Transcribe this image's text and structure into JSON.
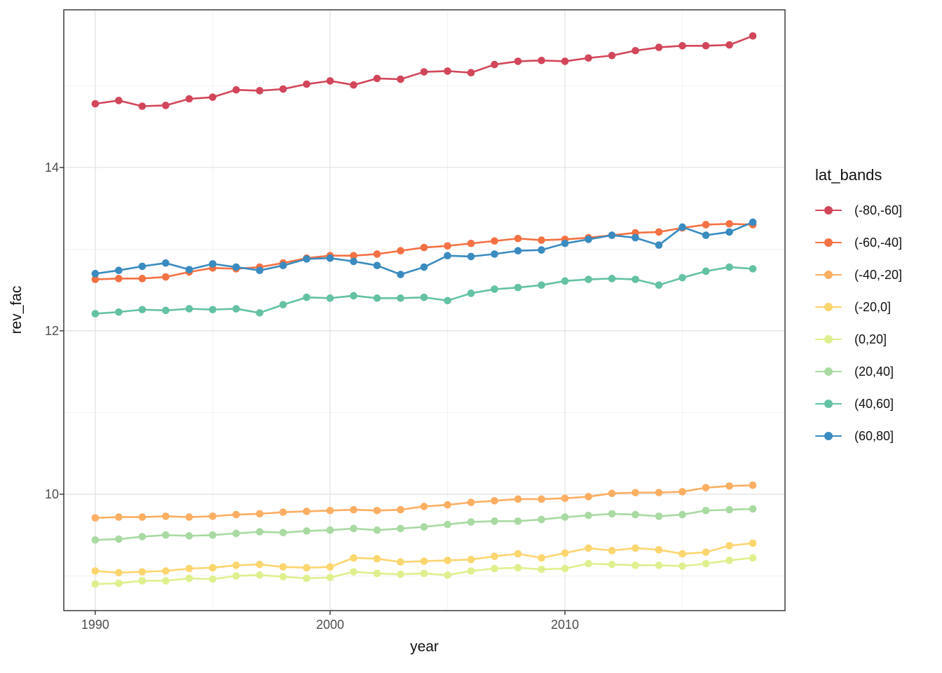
{
  "axes": {
    "x": {
      "label": "year",
      "tick_labels": [
        "1990",
        "2000",
        "2010"
      ],
      "tick_values": [
        1990,
        2000,
        2010
      ],
      "minor_ticks": [
        1995,
        2005,
        2015
      ],
      "range": [
        1988.66,
        2019.37
      ]
    },
    "y": {
      "label": "rev_fac",
      "tick_labels": [
        "14",
        "12",
        "10"
      ],
      "tick_values": [
        14,
        12,
        10
      ],
      "minor_ticks": [
        15,
        13,
        11,
        9
      ],
      "range": [
        8.575,
        15.93
      ]
    }
  },
  "legend": {
    "title": "lat_bands",
    "items": [
      {
        "label": "(-80,-60]"
      },
      {
        "label": "(-60,-40]"
      },
      {
        "label": "(-40,-20]"
      },
      {
        "label": "(-20,0]"
      },
      {
        "label": "(0,20]"
      },
      {
        "label": "(20,40]"
      },
      {
        "label": "(40,60]"
      },
      {
        "label": "(60,80]"
      }
    ]
  },
  "chart_data": {
    "type": "line",
    "title": "",
    "xlabel": "year",
    "ylabel": "rev_fac",
    "xlim": [
      1988.66,
      2019.37
    ],
    "ylim": [
      8.575,
      15.93
    ],
    "grid": "on",
    "legend_position": "right",
    "x": [
      1990,
      1991,
      1992,
      1993,
      1994,
      1995,
      1996,
      1997,
      1998,
      1999,
      2000,
      2001,
      2002,
      2003,
      2004,
      2005,
      2006,
      2007,
      2008,
      2009,
      2010,
      2011,
      2012,
      2013,
      2014,
      2015,
      2016,
      2017,
      2018
    ],
    "series": [
      {
        "name": "(-80,-60]",
        "color": "#d2465a",
        "values": [
          14.78,
          14.82,
          14.75,
          14.76,
          14.84,
          14.86,
          14.95,
          14.94,
          14.96,
          15.02,
          15.06,
          15.01,
          15.09,
          15.08,
          15.17,
          15.18,
          15.16,
          15.26,
          15.3,
          15.31,
          15.3,
          15.34,
          15.37,
          15.43,
          15.47,
          15.49,
          15.49,
          15.5,
          15.61
        ]
      },
      {
        "name": "(-60,-40]",
        "color": "#f47143",
        "values": [
          12.63,
          12.64,
          12.64,
          12.66,
          12.72,
          12.77,
          12.76,
          12.78,
          12.83,
          12.89,
          12.92,
          12.92,
          12.94,
          12.98,
          13.02,
          13.04,
          13.07,
          13.1,
          13.13,
          13.11,
          13.12,
          13.14,
          13.17,
          13.2,
          13.21,
          13.26,
          13.3,
          13.31,
          13.3
        ]
      },
      {
        "name": "(-40,-20]",
        "color": "#fcae62",
        "values": [
          9.71,
          9.72,
          9.72,
          9.73,
          9.72,
          9.73,
          9.75,
          9.76,
          9.78,
          9.79,
          9.8,
          9.81,
          9.8,
          9.81,
          9.85,
          9.87,
          9.9,
          9.92,
          9.94,
          9.94,
          9.95,
          9.97,
          10.01,
          10.02,
          10.02,
          10.03,
          10.08,
          10.1,
          10.11
        ]
      },
      {
        "name": "(-20,0]",
        "color": "#fbd56e",
        "values": [
          9.06,
          9.04,
          9.05,
          9.06,
          9.09,
          9.1,
          9.13,
          9.14,
          9.11,
          9.1,
          9.11,
          9.22,
          9.21,
          9.17,
          9.18,
          9.19,
          9.2,
          9.24,
          9.27,
          9.22,
          9.28,
          9.34,
          9.31,
          9.34,
          9.32,
          9.27,
          9.29,
          9.37,
          9.4
        ]
      },
      {
        "name": "(0,20]",
        "color": "#def08e",
        "values": [
          8.9,
          8.91,
          8.94,
          8.94,
          8.97,
          8.96,
          9.0,
          9.01,
          8.99,
          8.97,
          8.98,
          9.05,
          9.03,
          9.02,
          9.03,
          9.01,
          9.06,
          9.09,
          9.1,
          9.08,
          9.09,
          9.15,
          9.14,
          9.13,
          9.13,
          9.12,
          9.15,
          9.19,
          9.22
        ]
      },
      {
        "name": "(20,40]",
        "color": "#a8daa1",
        "values": [
          9.44,
          9.45,
          9.48,
          9.5,
          9.49,
          9.5,
          9.52,
          9.54,
          9.53,
          9.55,
          9.56,
          9.58,
          9.56,
          9.58,
          9.6,
          9.63,
          9.66,
          9.67,
          9.67,
          9.69,
          9.72,
          9.74,
          9.76,
          9.75,
          9.73,
          9.75,
          9.8,
          9.81,
          9.82
        ]
      },
      {
        "name": "(40,60]",
        "color": "#63c1a4",
        "values": [
          12.21,
          12.23,
          12.26,
          12.25,
          12.27,
          12.26,
          12.27,
          12.22,
          12.32,
          12.41,
          12.4,
          12.43,
          12.4,
          12.4,
          12.41,
          12.37,
          12.46,
          12.51,
          12.53,
          12.56,
          12.61,
          12.63,
          12.64,
          12.63,
          12.56,
          12.65,
          12.73,
          12.78,
          12.76
        ]
      },
      {
        "name": "(60,80]",
        "color": "#3a8bc0",
        "values": [
          12.7,
          12.74,
          12.79,
          12.83,
          12.75,
          12.82,
          12.78,
          12.74,
          12.8,
          12.88,
          12.89,
          12.85,
          12.8,
          12.69,
          12.78,
          12.92,
          12.91,
          12.94,
          12.98,
          12.99,
          13.07,
          13.12,
          13.17,
          13.14,
          13.05,
          13.27,
          13.17,
          13.21,
          13.33
        ]
      }
    ]
  },
  "style": {
    "major_grid_color": "#e4e4e4",
    "minor_grid_color": "#f1f1f1",
    "panel_border_color": "#3c3c3c",
    "tick_color": "#333333",
    "tick_text_color": "#4d4d4d"
  }
}
